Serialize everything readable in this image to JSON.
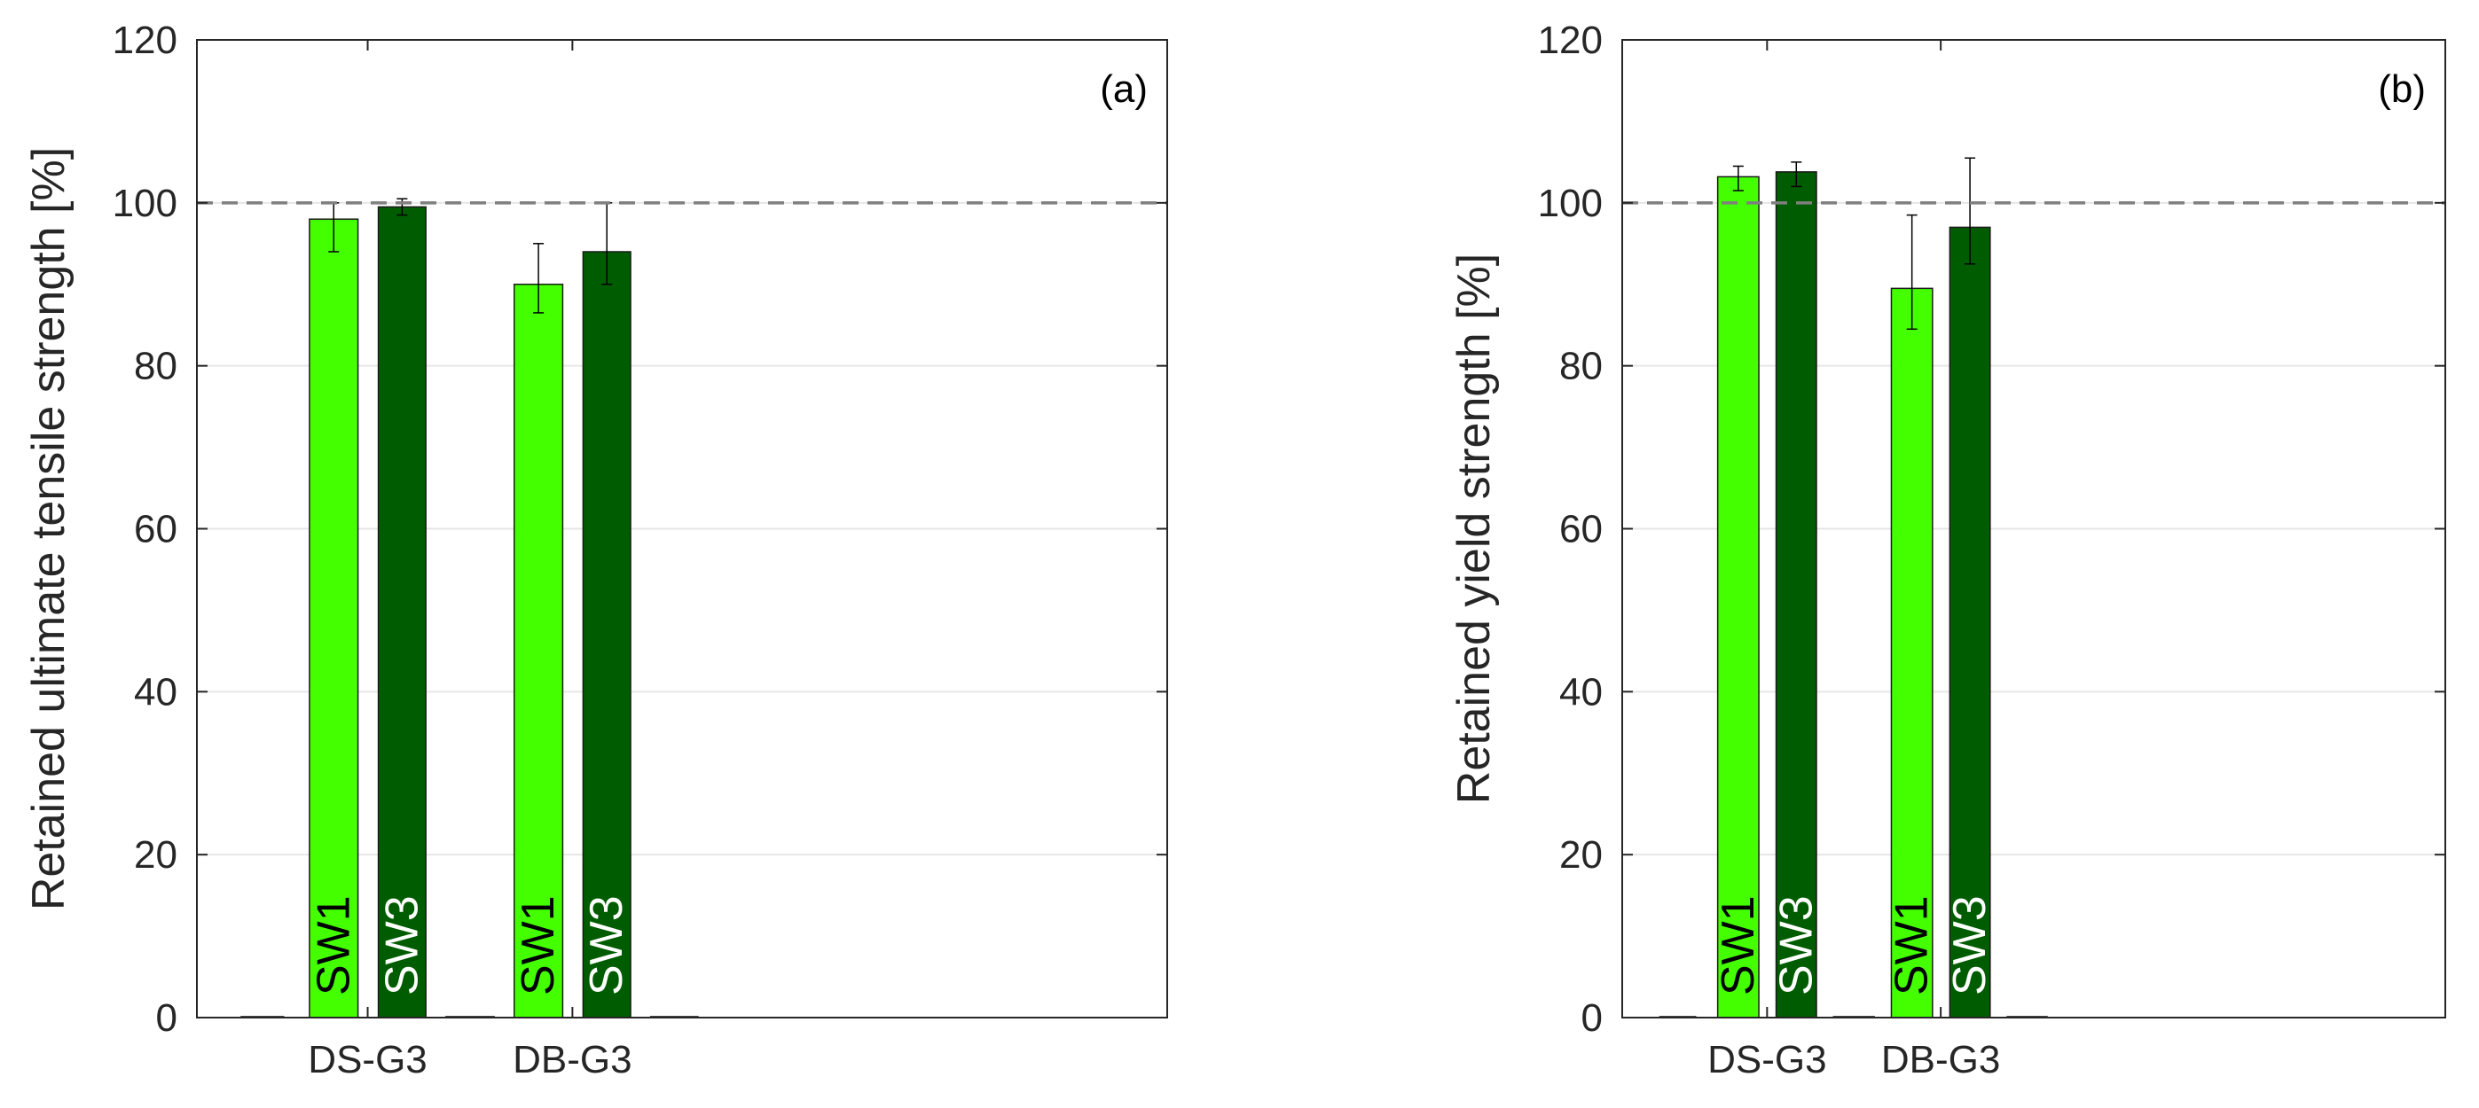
{
  "chart_data": [
    {
      "type": "bar",
      "panel_label": "(a)",
      "ylabel": "Retained ultimate tensile strength [%]",
      "xlabel": "",
      "ylim": [
        0,
        120
      ],
      "yticks": [
        0,
        20,
        40,
        60,
        80,
        100,
        120
      ],
      "categories": [
        "DS-G3",
        "DB-G3"
      ],
      "reference_line": 100,
      "grid": "horizontal",
      "series": [
        {
          "name": "SW1",
          "color": "#44ff00",
          "label_color": "#000000",
          "values": [
            98,
            90
          ],
          "err_low": [
            94,
            86.5
          ],
          "err_high": [
            100,
            95
          ]
        },
        {
          "name": "SW3",
          "color": "#005c00",
          "label_color": "#ffffff",
          "values": [
            99.5,
            94
          ],
          "err_low": [
            98.5,
            90
          ],
          "err_high": [
            100.5,
            100
          ]
        }
      ]
    },
    {
      "type": "bar",
      "panel_label": "(b)",
      "ylabel": "Retained yield strength [%]",
      "xlabel": "",
      "ylim": [
        0,
        120
      ],
      "yticks": [
        0,
        20,
        40,
        60,
        80,
        100,
        120
      ],
      "categories": [
        "DS-G3",
        "DB-G3"
      ],
      "reference_line": 100,
      "grid": "horizontal",
      "series": [
        {
          "name": "SW1",
          "color": "#44ff00",
          "label_color": "#000000",
          "values": [
            103.2,
            89.5
          ],
          "err_low": [
            101.5,
            84.5
          ],
          "err_high": [
            104.5,
            98.5
          ]
        },
        {
          "name": "SW3",
          "color": "#005c00",
          "label_color": "#ffffff",
          "values": [
            103.8,
            97
          ],
          "err_low": [
            102,
            92.5
          ],
          "err_high": [
            105,
            105.5
          ]
        }
      ]
    }
  ]
}
